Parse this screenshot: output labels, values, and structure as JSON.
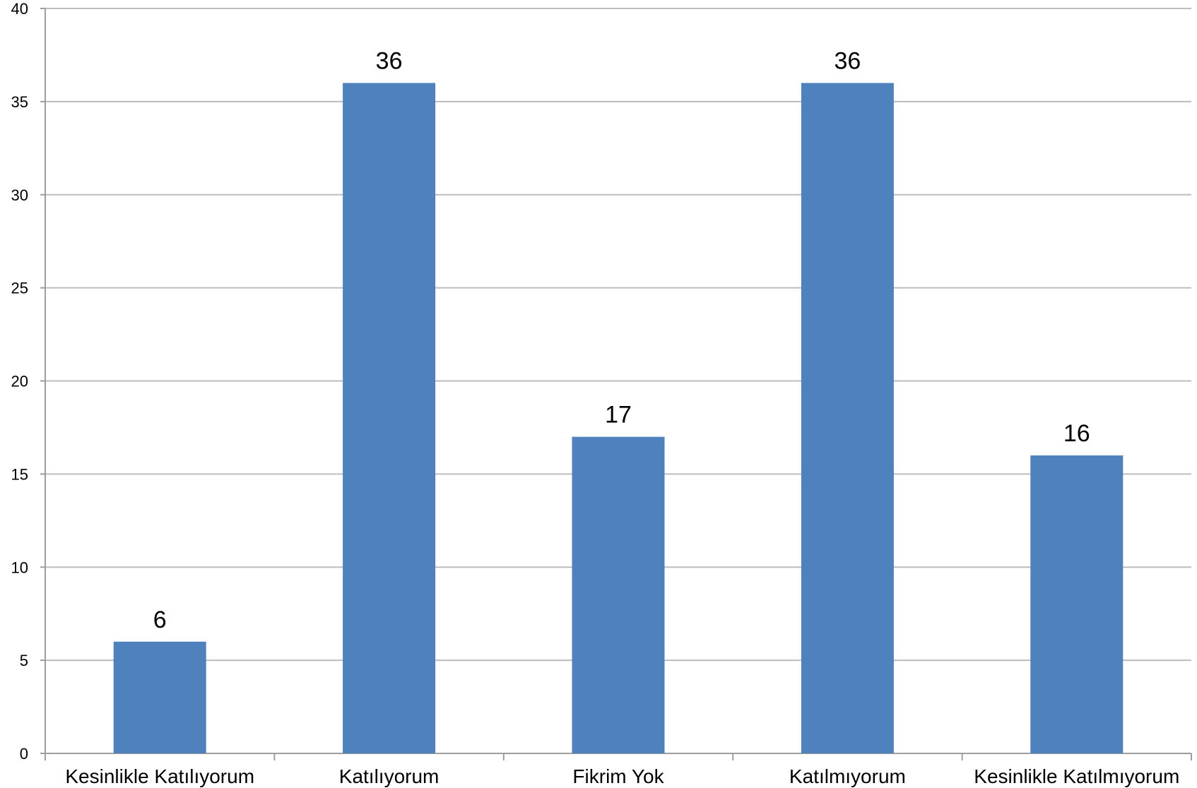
{
  "chart_data": {
    "type": "bar",
    "title": "",
    "xlabel": "",
    "ylabel": "",
    "categories": [
      "Kesinlikle Katılıyorum",
      "Katılıyorum",
      "Fikrim Yok",
      "Katılmıyorum",
      "Kesinlikle Katılmıyorum"
    ],
    "values": [
      6,
      36,
      17,
      36,
      16
    ],
    "data_labels": [
      "6",
      "36",
      "17",
      "36",
      "16"
    ],
    "ylim": [
      0,
      40
    ],
    "yticks": [
      0,
      5,
      10,
      15,
      20,
      25,
      30,
      35,
      40
    ],
    "grid": "horizontal",
    "legend": "none",
    "bar_color": "#4f81bd"
  }
}
